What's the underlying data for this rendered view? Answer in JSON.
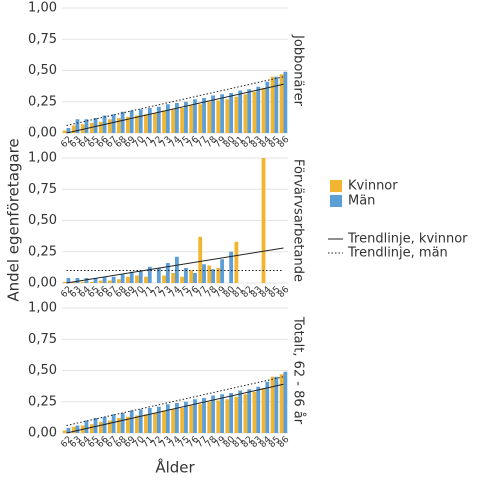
{
  "chart_data": {
    "type": "bar",
    "ylabel": "Andel egenföretagare",
    "xlabel": "Ålder",
    "categories": [
      "62",
      "63",
      "64",
      "65",
      "66",
      "67",
      "68",
      "69",
      "70",
      "71",
      "72",
      "73",
      "74",
      "75",
      "76",
      "77",
      "78",
      "79",
      "80",
      "81",
      "82",
      "83",
      "84",
      "85",
      "86"
    ],
    "series": [
      {
        "name": "Kvinnor",
        "color": "#f2b531"
      },
      {
        "name": "Män",
        "color": "#5b9fd6"
      }
    ],
    "trendlines": [
      {
        "name": "Trendlinje, kvinnor",
        "dash": "solid"
      },
      {
        "name": "Trendlinje, män",
        "dash": "dotted"
      }
    ],
    "ylim": [
      0,
      1
    ],
    "yticks": [
      {
        "value": 0,
        "label": "0,00"
      },
      {
        "value": 0.25,
        "label": "0,25"
      },
      {
        "value": 0.5,
        "label": "0,50"
      },
      {
        "value": 0.75,
        "label": "0,75"
      },
      {
        "value": 1,
        "label": "1,00"
      }
    ],
    "grid": true,
    "facets": [
      {
        "title": "Jobbonärer",
        "values": [
          [
            0.02,
            0.06,
            0.07,
            0.08,
            0.09,
            0.11,
            0.12,
            0.13,
            0.14,
            0.15,
            0.16,
            0.18,
            0.19,
            0.2,
            0.22,
            0.23,
            0.25,
            0.26,
            0.27,
            0.29,
            0.31,
            0.33,
            0.36,
            0.45,
            0.47
          ],
          [
            0.04,
            0.11,
            0.11,
            0.12,
            0.14,
            0.15,
            0.17,
            0.18,
            0.19,
            0.2,
            0.21,
            0.23,
            0.24,
            0.25,
            0.27,
            0.28,
            0.3,
            0.31,
            0.32,
            0.34,
            0.35,
            0.37,
            0.41,
            0.45,
            0.49
          ]
        ],
        "trend": [
          [
            0.0,
            0.39
          ],
          [
            0.06,
            0.45
          ]
        ]
      },
      {
        "title": "Förvärvsarbetande",
        "values": [
          [
            0.01,
            0.01,
            0.01,
            0.01,
            0.02,
            0.02,
            0.03,
            0.05,
            0.06,
            0.05,
            null,
            0.06,
            0.08,
            0.05,
            0.1,
            0.37,
            0.14,
            0.12,
            null,
            0.33,
            null,
            null,
            1.0,
            null,
            null
          ],
          [
            0.04,
            0.04,
            0.04,
            0.04,
            0.05,
            0.05,
            0.07,
            0.09,
            0.1,
            0.13,
            0.12,
            0.16,
            0.21,
            0.12,
            0.08,
            0.15,
            0.11,
            0.19,
            0.25,
            null,
            null,
            null,
            null,
            null,
            null
          ]
        ],
        "trend": [
          [
            0.0,
            0.28
          ],
          [
            0.1,
            0.1
          ]
        ]
      },
      {
        "title": "Totalt, 62 - 86 år",
        "values": [
          [
            0.02,
            0.05,
            0.06,
            0.07,
            0.09,
            0.1,
            0.12,
            0.13,
            0.14,
            0.15,
            0.16,
            0.18,
            0.19,
            0.2,
            0.22,
            0.23,
            0.25,
            0.26,
            0.27,
            0.29,
            0.31,
            0.33,
            0.36,
            0.45,
            0.47
          ],
          [
            0.04,
            0.06,
            0.1,
            0.12,
            0.13,
            0.15,
            0.16,
            0.18,
            0.19,
            0.2,
            0.21,
            0.23,
            0.24,
            0.25,
            0.27,
            0.28,
            0.3,
            0.31,
            0.32,
            0.34,
            0.35,
            0.37,
            0.41,
            0.45,
            0.49
          ]
        ],
        "trend": [
          [
            0.0,
            0.39
          ],
          [
            0.06,
            0.45
          ]
        ]
      }
    ]
  }
}
